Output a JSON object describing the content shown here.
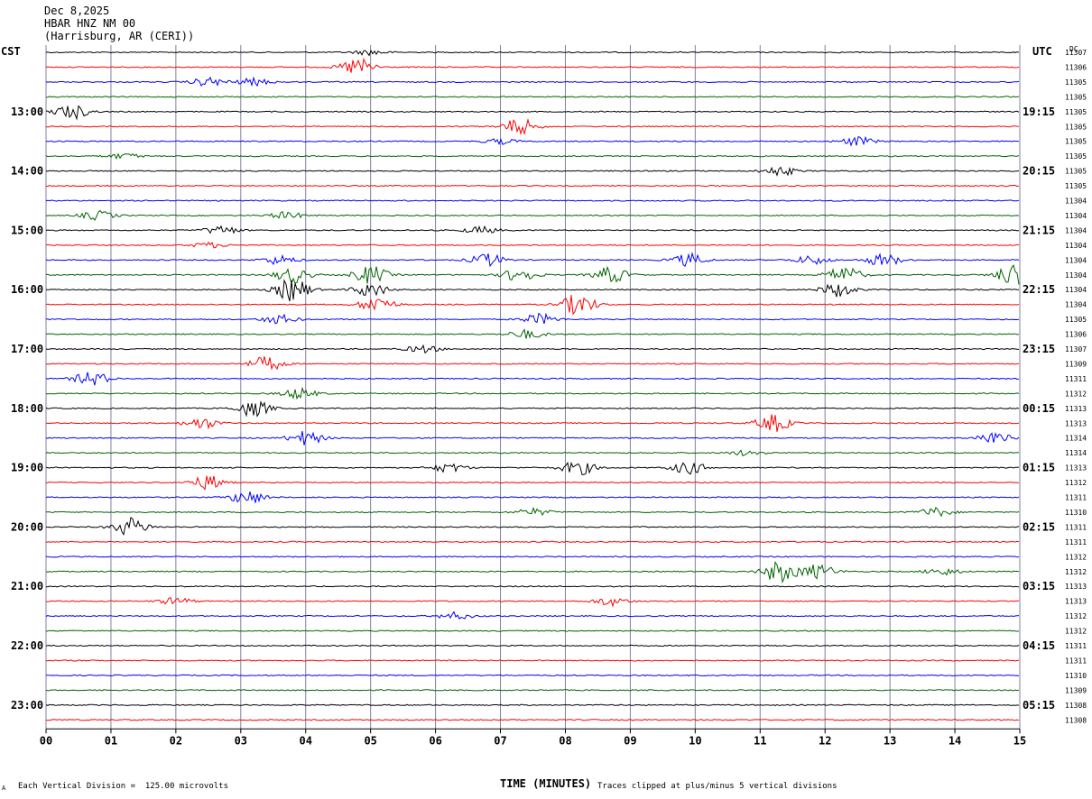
{
  "header": {
    "date": "Dec 8,2025",
    "station": "HBAR HNZ NM 00",
    "location": "(Harrisburg, AR (CERI))"
  },
  "left_corner_label": "CST",
  "right_corner_label": "UTC",
  "dc_label": "DC",
  "footer": {
    "scale_note": "Each Vertical Division =  125.00 microvolts",
    "clip_note": "Traces clipped at plus/minus 5 vertical divisions",
    "corner_mark": "A"
  },
  "colors": {
    "trace_cycle": [
      "#000000",
      "#ff0000",
      "#0000ff",
      "#006400"
    ],
    "grid": "#8080a0"
  },
  "chart_data": {
    "type": "helicorder",
    "xlabel": "TIME (MINUTES)",
    "x_ticks": [
      "00",
      "01",
      "02",
      "03",
      "04",
      "05",
      "06",
      "07",
      "08",
      "09",
      "10",
      "11",
      "12",
      "13",
      "14",
      "15"
    ],
    "xlim": [
      0,
      15
    ],
    "left_hour_labels": [
      "13:00",
      "14:00",
      "15:00",
      "16:00",
      "17:00",
      "18:00",
      "19:00",
      "20:00",
      "21:00",
      "22:00",
      "23:00"
    ],
    "right_hour_labels": [
      "19:15",
      "20:15",
      "21:15",
      "22:15",
      "23:15",
      "00:15",
      "01:15",
      "02:15",
      "03:15",
      "04:15",
      "05:15"
    ],
    "first_labeled_row": 4,
    "dc_offsets": [
      "11307",
      "11306",
      "11305",
      "11305",
      "11305",
      "11305",
      "11305",
      "11305",
      "11305",
      "11305",
      "11304",
      "11304",
      "11304",
      "11304",
      "11304",
      "11304",
      "11304",
      "11304",
      "11305",
      "11306",
      "11307",
      "11309",
      "11311",
      "11312",
      "11313",
      "11313",
      "11314",
      "11314",
      "11313",
      "11312",
      "11311",
      "11310",
      "11311",
      "11311",
      "11312",
      "11312",
      "11313",
      "11313",
      "11312",
      "11312",
      "11311",
      "11311",
      "11310",
      "11309",
      "11308",
      "11308"
    ],
    "events": [
      {
        "row": 0,
        "minute": 5.0,
        "amp": 3
      },
      {
        "row": 1,
        "minute": 4.8,
        "amp": 10
      },
      {
        "row": 2,
        "minute": 2.5,
        "amp": 5
      },
      {
        "row": 2,
        "minute": 3.2,
        "amp": 4
      },
      {
        "row": 4,
        "minute": 0.4,
        "amp": 8
      },
      {
        "row": 5,
        "minute": 7.3,
        "amp": 9
      },
      {
        "row": 6,
        "minute": 12.5,
        "amp": 5
      },
      {
        "row": 6,
        "minute": 7.0,
        "amp": 3
      },
      {
        "row": 7,
        "minute": 1.2,
        "amp": 3
      },
      {
        "row": 8,
        "minute": 11.3,
        "amp": 5
      },
      {
        "row": 11,
        "minute": 0.8,
        "amp": 5
      },
      {
        "row": 11,
        "minute": 3.7,
        "amp": 4
      },
      {
        "row": 12,
        "minute": 2.7,
        "amp": 5
      },
      {
        "row": 12,
        "minute": 6.7,
        "amp": 4
      },
      {
        "row": 13,
        "minute": 2.5,
        "amp": 3
      },
      {
        "row": 14,
        "minute": 3.6,
        "amp": 5
      },
      {
        "row": 14,
        "minute": 6.8,
        "amp": 7
      },
      {
        "row": 14,
        "minute": 9.9,
        "amp": 7
      },
      {
        "row": 14,
        "minute": 11.8,
        "amp": 5
      },
      {
        "row": 14,
        "minute": 12.9,
        "amp": 7
      },
      {
        "row": 15,
        "minute": 3.8,
        "amp": 9
      },
      {
        "row": 15,
        "minute": 5.0,
        "amp": 10
      },
      {
        "row": 15,
        "minute": 7.3,
        "amp": 8
      },
      {
        "row": 15,
        "minute": 8.7,
        "amp": 9
      },
      {
        "row": 15,
        "minute": 12.3,
        "amp": 9
      },
      {
        "row": 15,
        "minute": 14.9,
        "amp": 12
      },
      {
        "row": 16,
        "minute": 3.8,
        "amp": 13
      },
      {
        "row": 16,
        "minute": 5.0,
        "amp": 8
      },
      {
        "row": 16,
        "minute": 12.2,
        "amp": 8
      },
      {
        "row": 17,
        "minute": 5.1,
        "amp": 9
      },
      {
        "row": 17,
        "minute": 8.2,
        "amp": 12
      },
      {
        "row": 18,
        "minute": 3.6,
        "amp": 5
      },
      {
        "row": 18,
        "minute": 7.6,
        "amp": 6
      },
      {
        "row": 19,
        "minute": 7.4,
        "amp": 5
      },
      {
        "row": 20,
        "minute": 5.8,
        "amp": 4
      },
      {
        "row": 21,
        "minute": 3.4,
        "amp": 8
      },
      {
        "row": 22,
        "minute": 0.7,
        "amp": 8
      },
      {
        "row": 23,
        "minute": 3.9,
        "amp": 6
      },
      {
        "row": 24,
        "minute": 3.2,
        "amp": 9
      },
      {
        "row": 25,
        "minute": 2.4,
        "amp": 6
      },
      {
        "row": 25,
        "minute": 11.2,
        "amp": 10
      },
      {
        "row": 26,
        "minute": 4.0,
        "amp": 8
      },
      {
        "row": 26,
        "minute": 14.6,
        "amp": 7
      },
      {
        "row": 27,
        "minute": 10.8,
        "amp": 3
      },
      {
        "row": 28,
        "minute": 6.2,
        "amp": 5
      },
      {
        "row": 28,
        "minute": 8.2,
        "amp": 8
      },
      {
        "row": 28,
        "minute": 9.9,
        "amp": 7
      },
      {
        "row": 29,
        "minute": 2.5,
        "amp": 8
      },
      {
        "row": 30,
        "minute": 3.1,
        "amp": 8
      },
      {
        "row": 31,
        "minute": 7.5,
        "amp": 4
      },
      {
        "row": 31,
        "minute": 13.7,
        "amp": 5
      },
      {
        "row": 32,
        "minute": 1.3,
        "amp": 10
      },
      {
        "row": 35,
        "minute": 11.3,
        "amp": 12
      },
      {
        "row": 35,
        "minute": 11.9,
        "amp": 8
      },
      {
        "row": 35,
        "minute": 13.8,
        "amp": 4
      },
      {
        "row": 37,
        "minute": 8.7,
        "amp": 5
      },
      {
        "row": 37,
        "minute": 2.0,
        "amp": 4
      },
      {
        "row": 38,
        "minute": 6.3,
        "amp": 4
      }
    ]
  }
}
